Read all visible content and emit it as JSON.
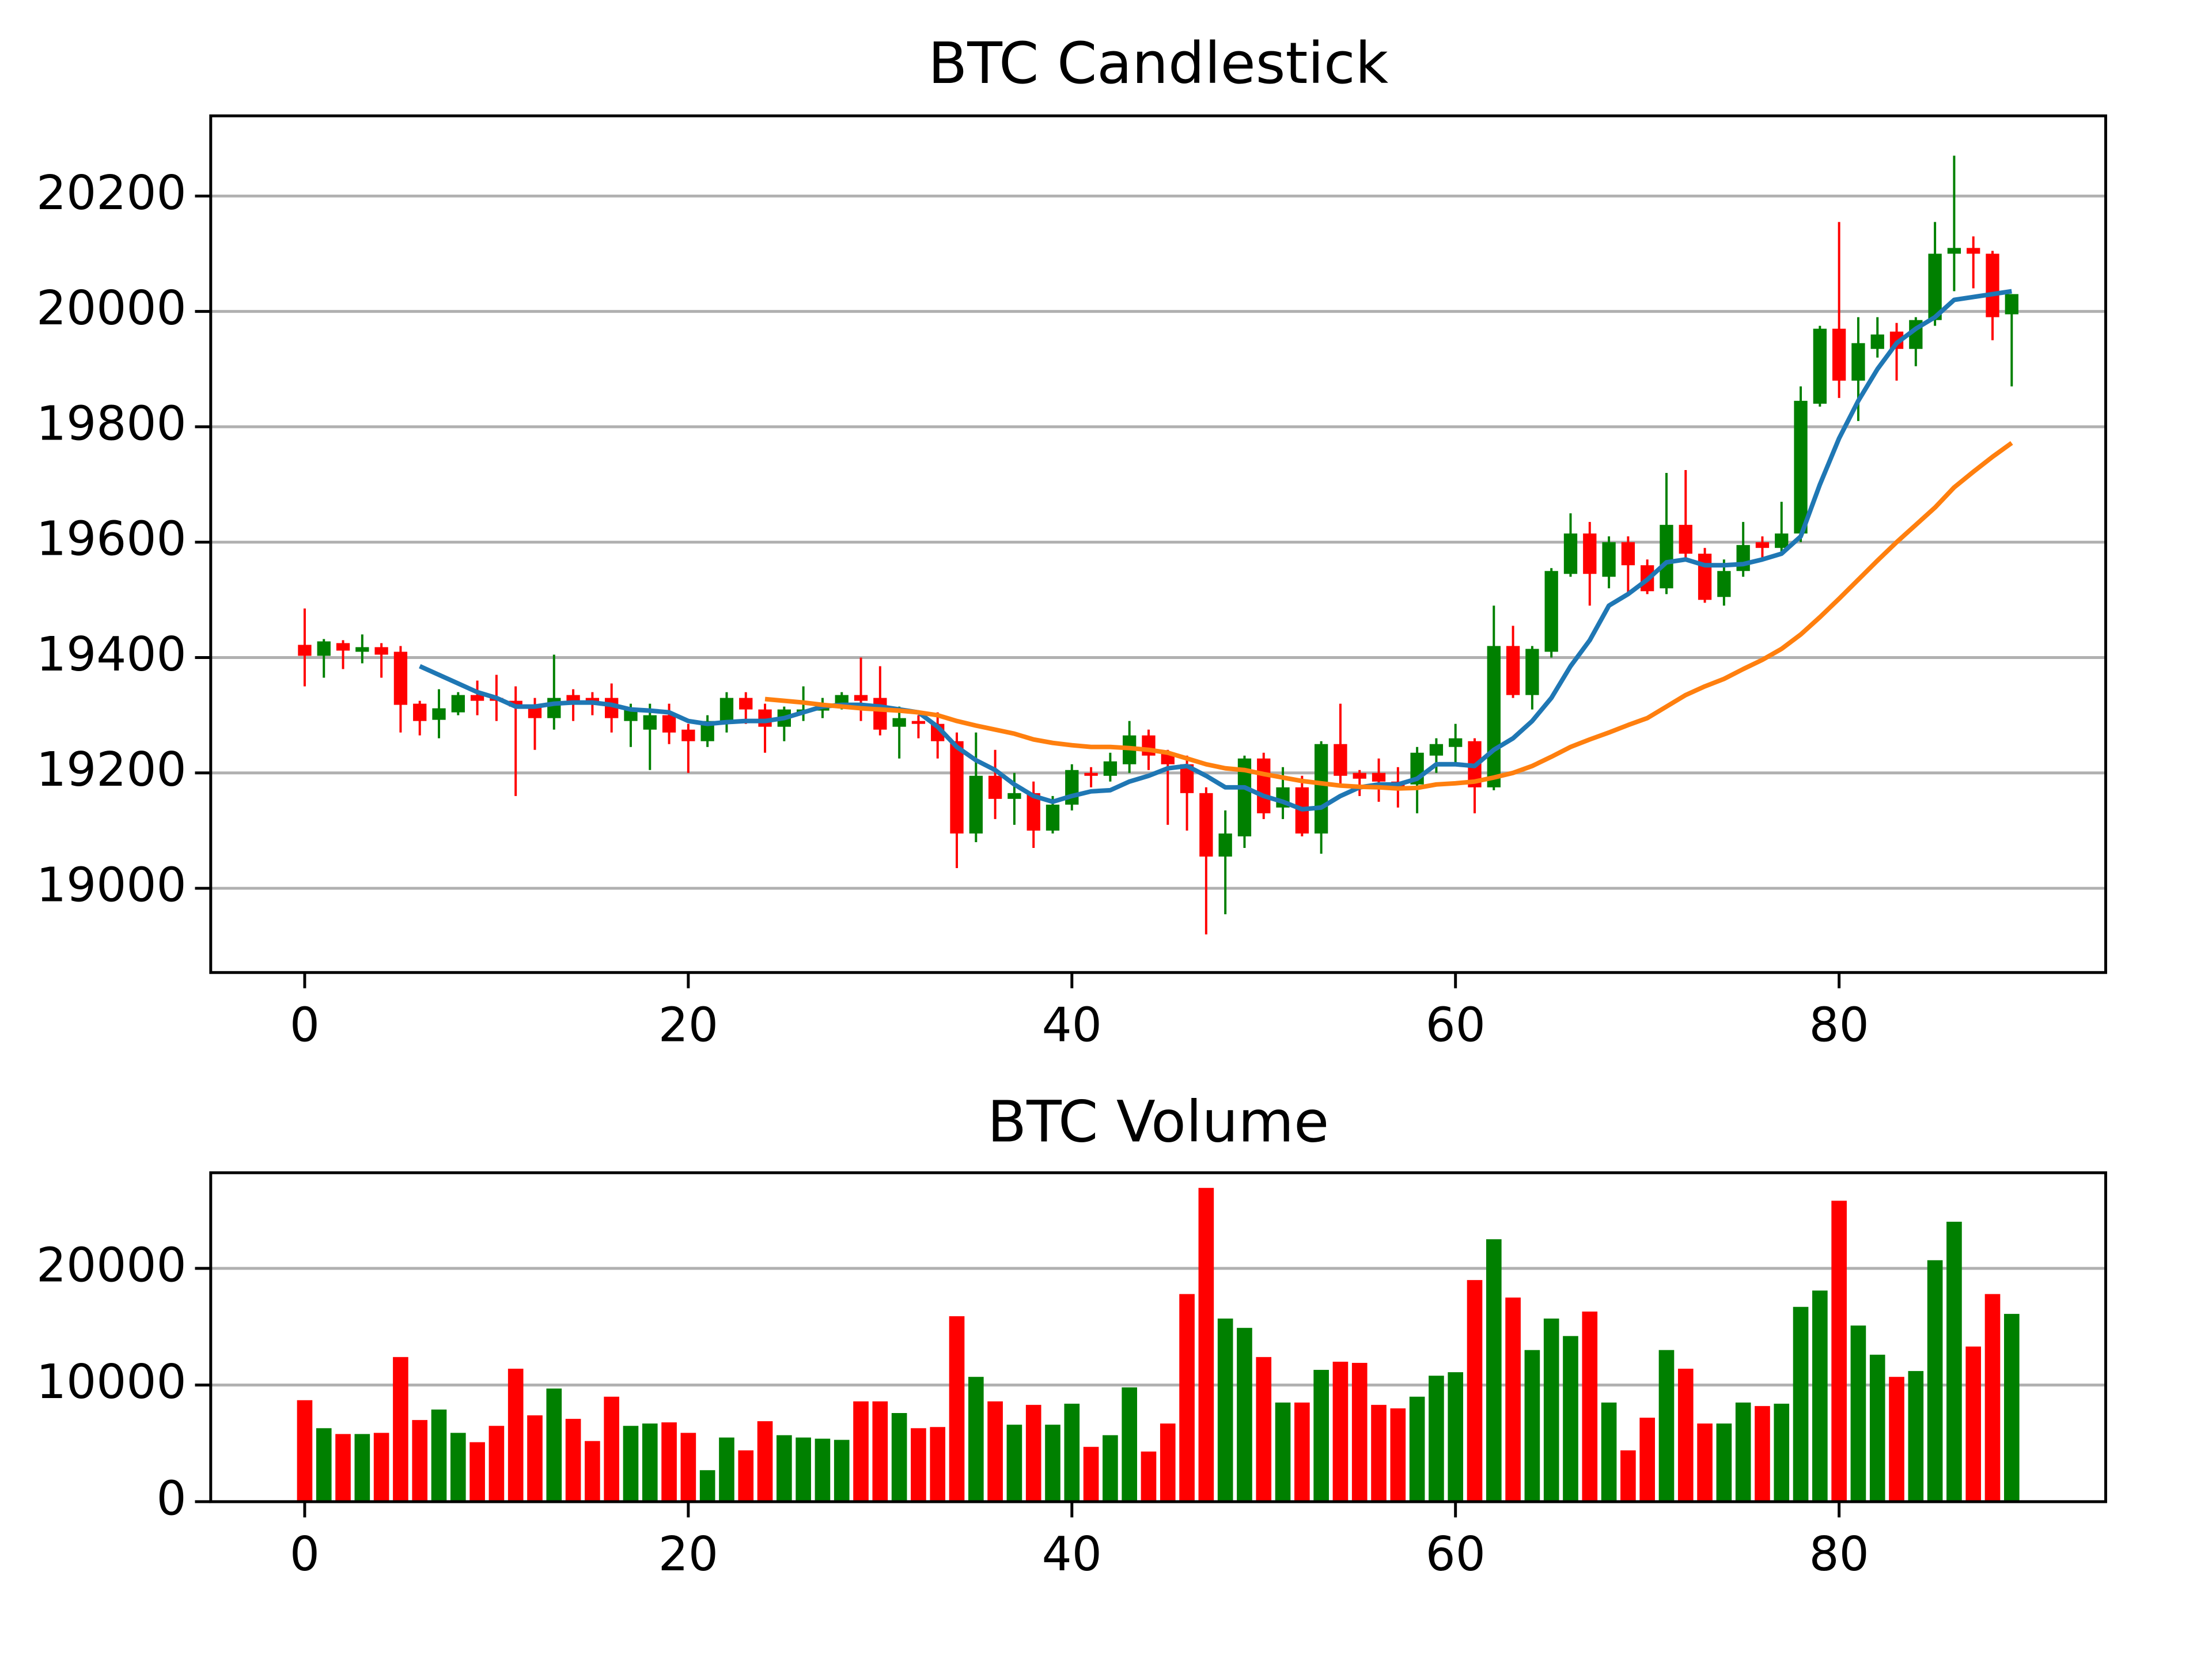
{
  "chart_data": [
    {
      "type": "candlestick",
      "title": "BTC Candlestick",
      "x": [
        0,
        1,
        2,
        3,
        4,
        5,
        6,
        7,
        8,
        9,
        10,
        11,
        12,
        13,
        14,
        15,
        16,
        17,
        18,
        19,
        20,
        21,
        22,
        23,
        24,
        25,
        26,
        27,
        28,
        29,
        30,
        31,
        32,
        33,
        34,
        35,
        36,
        37,
        38,
        39,
        40,
        41,
        42,
        43,
        44,
        45,
        46,
        47,
        48,
        49,
        50,
        51,
        52,
        53,
        54,
        55,
        56,
        57,
        58,
        59,
        60,
        61,
        62,
        63,
        64,
        65,
        66,
        67,
        68,
        69,
        70,
        71,
        72,
        73,
        74,
        75,
        76,
        77,
        78,
        79,
        80,
        81,
        82,
        83,
        84,
        85,
        86,
        87,
        88,
        89
      ],
      "open": [
        19422,
        19403,
        19425,
        19410,
        19418,
        19410,
        19320,
        19292,
        19305,
        19335,
        19330,
        19325,
        19318,
        19295,
        19335,
        19330,
        19330,
        19290,
        19275,
        19300,
        19275,
        19255,
        19290,
        19330,
        19310,
        19280,
        19305,
        19308,
        19318,
        19335,
        19330,
        19280,
        19290,
        19285,
        19255,
        19095,
        19195,
        19155,
        19165,
        19100,
        19145,
        19200,
        19195,
        19215,
        19265,
        19235,
        19215,
        19165,
        19055,
        19090,
        19225,
        19140,
        19175,
        19095,
        19250,
        19200,
        19200,
        19185,
        19180,
        19230,
        19245,
        19255,
        19175,
        19420,
        19335,
        19410,
        19545,
        19615,
        19540,
        19600,
        19560,
        19520,
        19630,
        19580,
        19505,
        19550,
        19600,
        19590,
        19615,
        19840,
        19970,
        19880,
        19935,
        19965,
        19935,
        19985,
        20100,
        20110,
        20100,
        19995
      ],
      "high": [
        19485,
        19432,
        19430,
        19440,
        19425,
        19420,
        19325,
        19345,
        19340,
        19360,
        19370,
        19350,
        19330,
        19405,
        19345,
        19340,
        19355,
        19320,
        19320,
        19320,
        19285,
        19300,
        19340,
        19340,
        19320,
        19315,
        19350,
        19330,
        19340,
        19400,
        19385,
        19315,
        19300,
        19305,
        19270,
        19270,
        19240,
        19200,
        19185,
        19160,
        19215,
        19210,
        19235,
        19290,
        19275,
        19240,
        19230,
        19175,
        19135,
        19230,
        19235,
        19210,
        19195,
        19255,
        19320,
        19205,
        19225,
        19210,
        19245,
        19260,
        19285,
        19260,
        19490,
        19455,
        19420,
        19555,
        19650,
        19635,
        19610,
        19610,
        19570,
        19720,
        19725,
        19590,
        19570,
        19635,
        19610,
        19670,
        19870,
        19975,
        20155,
        19990,
        19990,
        19980,
        19990,
        20155,
        20270,
        20130,
        20105,
        20030
      ],
      "low": [
        19350,
        19365,
        19380,
        19390,
        19365,
        19270,
        19265,
        19260,
        19300,
        19300,
        19290,
        19160,
        19240,
        19275,
        19290,
        19300,
        19270,
        19245,
        19205,
        19250,
        19200,
        19245,
        19270,
        19285,
        19235,
        19255,
        19290,
        19295,
        19310,
        19290,
        19265,
        19225,
        19260,
        19225,
        19035,
        19080,
        19120,
        19110,
        19070,
        19095,
        19135,
        19175,
        19185,
        19200,
        19205,
        19110,
        19100,
        18920,
        18955,
        19070,
        19120,
        19120,
        19090,
        19060,
        19180,
        19160,
        19150,
        19140,
        19130,
        19200,
        19215,
        19130,
        19170,
        19330,
        19310,
        19400,
        19540,
        19490,
        19520,
        19510,
        19510,
        19510,
        19570,
        19495,
        19490,
        19540,
        19570,
        19580,
        19600,
        19835,
        19850,
        19810,
        19920,
        19880,
        19905,
        19975,
        20035,
        20040,
        19950,
        19870
      ],
      "close": [
        19403,
        19428,
        19412,
        19418,
        19405,
        19318,
        19290,
        19312,
        19335,
        19325,
        19325,
        19315,
        19295,
        19330,
        19325,
        19320,
        19295,
        19310,
        19300,
        19270,
        19255,
        19290,
        19330,
        19310,
        19280,
        19310,
        19310,
        19318,
        19335,
        19325,
        19275,
        19295,
        19285,
        19255,
        19095,
        19195,
        19155,
        19165,
        19100,
        19145,
        19205,
        19195,
        19220,
        19265,
        19230,
        19215,
        19165,
        19055,
        19095,
        19225,
        19130,
        19175,
        19095,
        19250,
        19195,
        19190,
        19185,
        19175,
        19235,
        19250,
        19260,
        19175,
        19420,
        19335,
        19415,
        19550,
        19615,
        19545,
        19600,
        19560,
        19515,
        19630,
        19580,
        19500,
        19550,
        19595,
        19590,
        19615,
        19845,
        19970,
        19880,
        19945,
        19960,
        19935,
        19985,
        20100,
        20110,
        20100,
        19990,
        20030
      ],
      "up_color": "#008000",
      "down_color": "#ff0000",
      "series": [
        {
          "color": "#1f77b4",
          "values": [
            null,
            null,
            null,
            null,
            null,
            null,
            19385,
            19370,
            19355,
            19340,
            19330,
            19315,
            19315,
            19320,
            19322,
            19322,
            19318,
            19310,
            19308,
            19305,
            19290,
            19285,
            19288,
            19290,
            19290,
            19295,
            19305,
            19315,
            19318,
            19318,
            19315,
            19310,
            19305,
            19280,
            19245,
            19222,
            19205,
            19180,
            19160,
            19150,
            19160,
            19168,
            19170,
            19185,
            19195,
            19208,
            19212,
            19195,
            19175,
            19175,
            19160,
            19150,
            19137,
            19140,
            19160,
            19175,
            19180,
            19180,
            19190,
            19215,
            19215,
            19212,
            19240,
            19260,
            19290,
            19330,
            19385,
            19430,
            19490,
            19510,
            19535,
            19565,
            19570,
            19560,
            19560,
            19562,
            19570,
            19580,
            19610,
            19700,
            19780,
            19845,
            19900,
            19945,
            19970,
            19990,
            20020,
            20025,
            20030,
            20035
          ]
        },
        {
          "color": "#ff7f0e",
          "values": [
            null,
            null,
            null,
            null,
            null,
            null,
            null,
            null,
            null,
            null,
            null,
            null,
            null,
            null,
            null,
            null,
            null,
            null,
            null,
            null,
            null,
            null,
            null,
            null,
            19328,
            19325,
            19322,
            19318,
            19315,
            19312,
            19310,
            19308,
            19305,
            19300,
            19290,
            19282,
            19275,
            19268,
            19258,
            19252,
            19248,
            19245,
            19245,
            19243,
            19240,
            19235,
            19225,
            19215,
            19208,
            19205,
            19198,
            19192,
            19186,
            19182,
            19178,
            19176,
            19175,
            19173,
            19174,
            19180,
            19182,
            19185,
            19192,
            19200,
            19212,
            19228,
            19245,
            19258,
            19270,
            19283,
            19295,
            19315,
            19335,
            19350,
            19363,
            19380,
            19396,
            19415,
            19440,
            19470,
            19502,
            19535,
            19568,
            19600,
            19630,
            19660,
            19695,
            19722,
            19748,
            19772
          ]
        }
      ],
      "xlim": [
        -4.9,
        93.9
      ],
      "xticks": [
        0,
        20,
        40,
        60,
        80
      ],
      "ylim": [
        18854,
        20339
      ],
      "yticks": [
        19000,
        19200,
        19400,
        19600,
        19800,
        20000,
        20200
      ],
      "grid": "y"
    },
    {
      "type": "bar",
      "title": "BTC Volume",
      "x": [
        0,
        1,
        2,
        3,
        4,
        5,
        6,
        7,
        8,
        9,
        10,
        11,
        12,
        13,
        14,
        15,
        16,
        17,
        18,
        19,
        20,
        21,
        22,
        23,
        24,
        25,
        26,
        27,
        28,
        29,
        30,
        31,
        32,
        33,
        34,
        35,
        36,
        37,
        38,
        39,
        40,
        41,
        42,
        43,
        44,
        45,
        46,
        47,
        48,
        49,
        50,
        51,
        52,
        53,
        54,
        55,
        56,
        57,
        58,
        59,
        60,
        61,
        62,
        63,
        64,
        65,
        66,
        67,
        68,
        69,
        70,
        71,
        72,
        73,
        74,
        75,
        76,
        77,
        78,
        79,
        80,
        81,
        82,
        83,
        84,
        85,
        86,
        87,
        88,
        89
      ],
      "values": [
        8700,
        6300,
        5800,
        5800,
        5900,
        12400,
        7000,
        7900,
        5900,
        5100,
        6500,
        11400,
        7400,
        9700,
        7100,
        5200,
        9000,
        6500,
        6700,
        6800,
        5900,
        2700,
        5500,
        4400,
        6900,
        5700,
        5500,
        5400,
        5300,
        8600,
        8600,
        7600,
        6300,
        6400,
        15900,
        10700,
        8600,
        6600,
        8300,
        6600,
        8400,
        4700,
        5700,
        9800,
        4300,
        6700,
        17800,
        26900,
        15700,
        14900,
        12400,
        8500,
        8500,
        11300,
        12000,
        11900,
        8300,
        8000,
        9000,
        10800,
        11100,
        19000,
        22500,
        17500,
        13000,
        15700,
        14200,
        16300,
        8500,
        4400,
        7200,
        13000,
        11400,
        6700,
        6700,
        8500,
        8200,
        8400,
        16700,
        18100,
        25800,
        15100,
        12600,
        10700,
        11200,
        20700,
        24000,
        13300,
        17800,
        16100
      ],
      "up_color": "#008000",
      "down_color": "#ff0000",
      "xlim": [
        -4.9,
        93.9
      ],
      "xticks": [
        0,
        20,
        40,
        60,
        80
      ],
      "ylim": [
        0,
        28200
      ],
      "yticks": [
        0,
        10000,
        20000
      ],
      "grid": "y"
    }
  ]
}
